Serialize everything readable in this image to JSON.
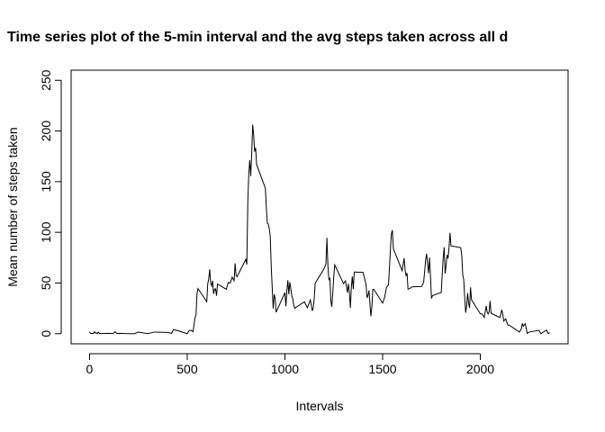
{
  "chart_data": {
    "type": "line",
    "title": "Time series plot of the 5-min interval and the avg steps taken across all d",
    "x_label": "Intervals",
    "y_label": "Mean number of steps taken",
    "color": "#000000",
    "xlim": [
      -94.2,
      2449.2
    ],
    "ylim": [
      -10,
      260
    ],
    "xticks": [
      0,
      500,
      1000,
      1500,
      2000
    ],
    "yticks": [
      0,
      50,
      100,
      150,
      200,
      250
    ],
    "x": [
      0,
      5,
      10,
      15,
      20,
      25,
      30,
      35,
      40,
      45,
      50,
      55,
      100,
      110,
      120,
      130,
      140,
      150,
      200,
      230,
      250,
      300,
      330,
      400,
      420,
      430,
      440,
      450,
      500,
      510,
      520,
      530,
      540,
      545,
      550,
      555,
      600,
      605,
      610,
      615,
      620,
      625,
      630,
      635,
      640,
      645,
      650,
      655,
      700,
      710,
      720,
      730,
      740,
      745,
      750,
      755,
      800,
      805,
      810,
      815,
      820,
      825,
      830,
      835,
      840,
      845,
      850,
      855,
      900,
      905,
      910,
      915,
      920,
      925,
      930,
      935,
      940,
      945,
      950,
      955,
      1000,
      1005,
      1010,
      1015,
      1020,
      1025,
      1030,
      1035,
      1040,
      1045,
      1050,
      1100,
      1115,
      1130,
      1140,
      1145,
      1150,
      1155,
      1200,
      1210,
      1215,
      1220,
      1225,
      1230,
      1235,
      1240,
      1245,
      1250,
      1255,
      1300,
      1310,
      1320,
      1325,
      1330,
      1335,
      1340,
      1345,
      1350,
      1355,
      1400,
      1415,
      1420,
      1425,
      1430,
      1440,
      1445,
      1450,
      1455,
      1500,
      1510,
      1520,
      1530,
      1535,
      1540,
      1545,
      1550,
      1555,
      1600,
      1610,
      1615,
      1620,
      1625,
      1630,
      1640,
      1650,
      1700,
      1710,
      1715,
      1720,
      1725,
      1730,
      1735,
      1740,
      1745,
      1750,
      1755,
      1800,
      1805,
      1810,
      1815,
      1820,
      1825,
      1830,
      1835,
      1840,
      1845,
      1850,
      1900,
      1905,
      1910,
      1915,
      1920,
      1925,
      1930,
      1935,
      1940,
      1945,
      1950,
      1955,
      2000,
      2010,
      2020,
      2030,
      2035,
      2040,
      2045,
      2050,
      2055,
      2100,
      2110,
      2115,
      2120,
      2130,
      2140,
      2150,
      2200,
      2210,
      2215,
      2220,
      2225,
      2230,
      2240,
      2250,
      2300,
      2310,
      2330,
      2340,
      2345,
      2350,
      2355
    ],
    "values": [
      1.7,
      0.3,
      0.1,
      0.2,
      0.1,
      2.1,
      0.5,
      0.9,
      0,
      1.5,
      0.3,
      0.1,
      0.3,
      0.2,
      0,
      1.8,
      0.2,
      0.3,
      0,
      0,
      1.5,
      0,
      1.6,
      1.2,
      0.3,
      4.1,
      3.5,
      3.1,
      0,
      3,
      3.3,
      2.1,
      16,
      18.3,
      39.5,
      44.5,
      31.5,
      49.3,
      53.8,
      63.5,
      50,
      47.1,
      52.2,
      39.3,
      44,
      44.2,
      37.4,
      49,
      43.8,
      50.5,
      49.9,
      55.7,
      52.3,
      69.5,
      57.8,
      56.2,
      73.4,
      68.2,
      129.4,
      157.5,
      171.2,
      155.4,
      177.3,
      206.2,
      195.9,
      179.6,
      183.4,
      167,
      143.5,
      124,
      109.1,
      108.1,
      103.7,
      95.9,
      66.2,
      45.2,
      24.8,
      38.8,
      34.9,
      21.1,
      40.6,
      27,
      42.4,
      52.7,
      38.9,
      50.8,
      44.3,
      37.4,
      34.7,
      28.3,
      25.1,
      31.4,
      25.5,
      33.3,
      22.5,
      25.8,
      34.6,
      49.9,
      63.9,
      68.9,
      94.6,
      66.8,
      53.3,
      54.5,
      32.4,
      26.5,
      40.4,
      56.1,
      67.9,
      49.4,
      52.1,
      40.6,
      49.2,
      40.4,
      25.5,
      46.1,
      56.4,
      44,
      60.8,
      60.5,
      48.7,
      35.5,
      37.6,
      42.7,
      17.2,
      26.8,
      43.7,
      43.7,
      30.2,
      35.5,
      46,
      48.1,
      65.3,
      82.9,
      98.7,
      102.1,
      83.9,
      62.1,
      74.5,
      63.2,
      56.9,
      59.8,
      43.9,
      44.7,
      46.2,
      46.6,
      50.7,
      61,
      72.7,
      78.9,
      68.9,
      59.7,
      75.1,
      56.5,
      34.8,
      37.5,
      40.7,
      58,
      74.7,
      85.3,
      59.3,
      67.8,
      77.7,
      74.2,
      85.3,
      99.5,
      86.6,
      84.9,
      77.4,
      58,
      53.4,
      36.3,
      20.7,
      27.4,
      40,
      30.2,
      25.5,
      45.7,
      33.5,
      19.6,
      19.3,
      16,
      27.3,
      21.3,
      19.5,
      21.3,
      32.3,
      20.2,
      15.9,
      23.5,
      19.2,
      12.5,
      14.7,
      8.7,
      8.1,
      1.6,
      4.6,
      10.2,
      7.4,
      8.7,
      9.8,
      0.2,
      1.6,
      3.3,
      0,
      2.6,
      3.3,
      0.6,
      0.2,
      1.1
    ]
  }
}
